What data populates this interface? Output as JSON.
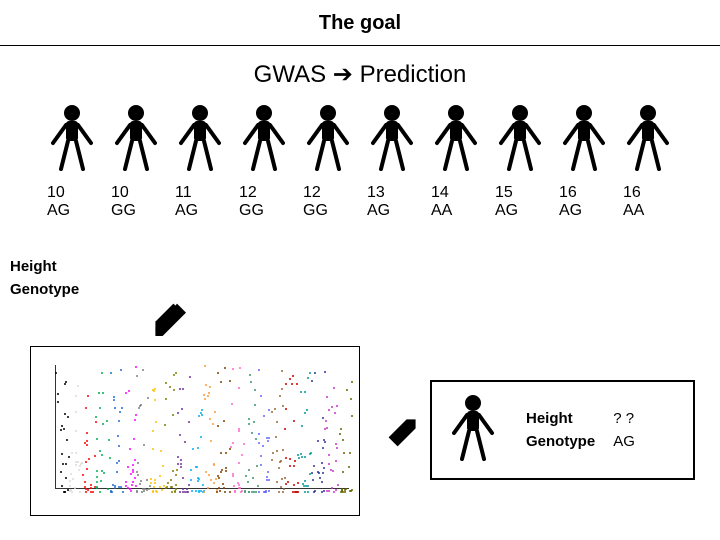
{
  "title": "The goal",
  "subtitle_left": "GWAS",
  "subtitle_arrow": "➔",
  "subtitle_right": "Prediction",
  "row_labels": {
    "height": "Height",
    "genotype": "Genotype"
  },
  "people": [
    {
      "height": "10",
      "genotype": "AG"
    },
    {
      "height": "10",
      "genotype": "GG"
    },
    {
      "height": "11",
      "genotype": "AG"
    },
    {
      "height": "12",
      "genotype": "GG"
    },
    {
      "height": "12",
      "genotype": "GG"
    },
    {
      "height": "13",
      "genotype": "AG"
    },
    {
      "height": "14",
      "genotype": "AA"
    },
    {
      "height": "15",
      "genotype": "AG"
    },
    {
      "height": "16",
      "genotype": "AG"
    },
    {
      "height": "16",
      "genotype": "AA"
    }
  ],
  "person_color": "#000000",
  "manhattan": {
    "chrom_colors": [
      "#000000",
      "#dcdcdc",
      "#ff0000",
      "#00b050",
      "#1f6dd6",
      "#ff00ff",
      "#7f7f7f",
      "#ffc000",
      "#808000",
      "#7030a0",
      "#00b0f0",
      "#ff9933",
      "#804000",
      "#ff66cc",
      "#339966",
      "#6666ff",
      "#996633",
      "#cc0000",
      "#009999",
      "#333399",
      "#cc33cc",
      "#666600"
    ],
    "chrom_count": 22,
    "points_per_chrom": 22,
    "ymax": 10
  },
  "prediction": {
    "height_label": "Height",
    "height_value": "? ?",
    "genotype_label": "Genotype",
    "genotype_value": "AG"
  },
  "arrow_fill": "#000000"
}
